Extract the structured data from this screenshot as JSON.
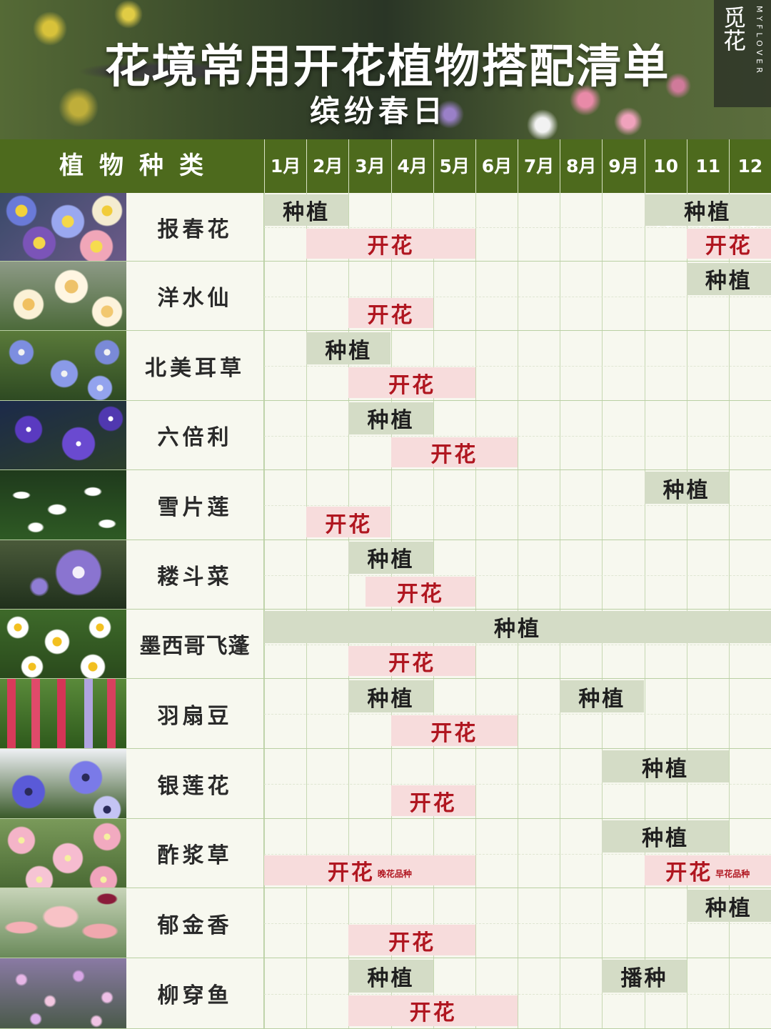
{
  "banner": {
    "title": "花境常用开花植物搭配清单",
    "subtitle": "缤纷春日",
    "logo_mark": "觅花",
    "logo_text": "MYFLOVER"
  },
  "header": {
    "type_label": "植物种类",
    "months": [
      "1月",
      "2月",
      "3月",
      "4月",
      "5月",
      "6月",
      "7月",
      "8月",
      "9月",
      "10月",
      "11月",
      "12月"
    ]
  },
  "legend": {
    "plant": "种植",
    "bloom": "开花",
    "sow": "播种"
  },
  "colors": {
    "header_green": "#4d6a1d",
    "plant_bg": "#d4dcc6",
    "bloom_bg": "#f7dcdc",
    "bloom_text": "#b01620"
  },
  "plants": [
    {
      "name": "报春花",
      "thumb": "primrose",
      "bars": [
        {
          "kind": "plant",
          "label": "种植",
          "start": 1,
          "end": 2
        },
        {
          "kind": "plant",
          "label": "种植",
          "start": 10,
          "end": 12
        },
        {
          "kind": "bloom",
          "label": "开花",
          "start": 2,
          "end": 5
        },
        {
          "kind": "bloom",
          "label": "开花",
          "start": 11,
          "end": 12
        }
      ]
    },
    {
      "name": "洋水仙",
      "thumb": "daffodil",
      "bars": [
        {
          "kind": "plant",
          "label": "种植",
          "start": 11,
          "end": 12
        },
        {
          "kind": "bloom",
          "label": "开花",
          "start": 3,
          "end": 4
        }
      ]
    },
    {
      "name": "北美耳草",
      "thumb": "blue",
      "bars": [
        {
          "kind": "plant",
          "label": "种植",
          "start": 2,
          "end": 3
        },
        {
          "kind": "bloom",
          "label": "开花",
          "start": 3,
          "end": 5
        }
      ]
    },
    {
      "name": "六倍利",
      "thumb": "lobelia",
      "bars": [
        {
          "kind": "plant",
          "label": "种植",
          "start": 3,
          "end": 4
        },
        {
          "kind": "bloom",
          "label": "开花",
          "start": 4,
          "end": 6
        }
      ]
    },
    {
      "name": "雪片莲",
      "thumb": "snowflake",
      "bars": [
        {
          "kind": "plant",
          "label": "种植",
          "start": 10,
          "end": 11
        },
        {
          "kind": "bloom",
          "label": "开花",
          "start": 2,
          "end": 3
        }
      ]
    },
    {
      "name": "耧斗菜",
      "thumb": "columbine",
      "bars": [
        {
          "kind": "plant",
          "label": "种植",
          "start": 3,
          "end": 4
        },
        {
          "kind": "bloom",
          "label": "开花",
          "start": 3.4,
          "end": 5
        }
      ]
    },
    {
      "name": "墨西哥飞蓬",
      "thumb": "daisy",
      "bars": [
        {
          "kind": "plant",
          "label": "种植",
          "start": 1,
          "end": 12
        },
        {
          "kind": "bloom",
          "label": "开花",
          "start": 3,
          "end": 5
        }
      ]
    },
    {
      "name": "羽扇豆",
      "thumb": "lupine",
      "bars": [
        {
          "kind": "plant",
          "label": "种植",
          "start": 3,
          "end": 4
        },
        {
          "kind": "plant",
          "label": "种植",
          "start": 8,
          "end": 9
        },
        {
          "kind": "bloom",
          "label": "开花",
          "start": 4,
          "end": 6
        }
      ]
    },
    {
      "name": "银莲花",
      "thumb": "anemone",
      "bars": [
        {
          "kind": "plant",
          "label": "种植",
          "start": 9,
          "end": 11
        },
        {
          "kind": "bloom",
          "label": "开花",
          "start": 4,
          "end": 5
        }
      ]
    },
    {
      "name": "酢浆草",
      "thumb": "oxalis",
      "bars": [
        {
          "kind": "plant",
          "label": "种植",
          "start": 9,
          "end": 11
        },
        {
          "kind": "bloom",
          "label": "开花",
          "note": "晚花品种",
          "start": 1,
          "end": 5
        },
        {
          "kind": "bloom",
          "label": "开花",
          "note": "早花品种",
          "start": 10,
          "end": 12
        }
      ]
    },
    {
      "name": "郁金香",
      "thumb": "tulip",
      "bars": [
        {
          "kind": "plant",
          "label": "种植",
          "start": 11,
          "end": 12
        },
        {
          "kind": "bloom",
          "label": "开花",
          "start": 3,
          "end": 5
        }
      ]
    },
    {
      "name": "柳穿鱼",
      "thumb": "linaria",
      "bars": [
        {
          "kind": "plant",
          "label": "种植",
          "start": 3,
          "end": 4
        },
        {
          "kind": "plant",
          "label": "播种",
          "start": 9,
          "end": 10
        },
        {
          "kind": "bloom",
          "label": "开花",
          "start": 3,
          "end": 6
        }
      ]
    }
  ]
}
